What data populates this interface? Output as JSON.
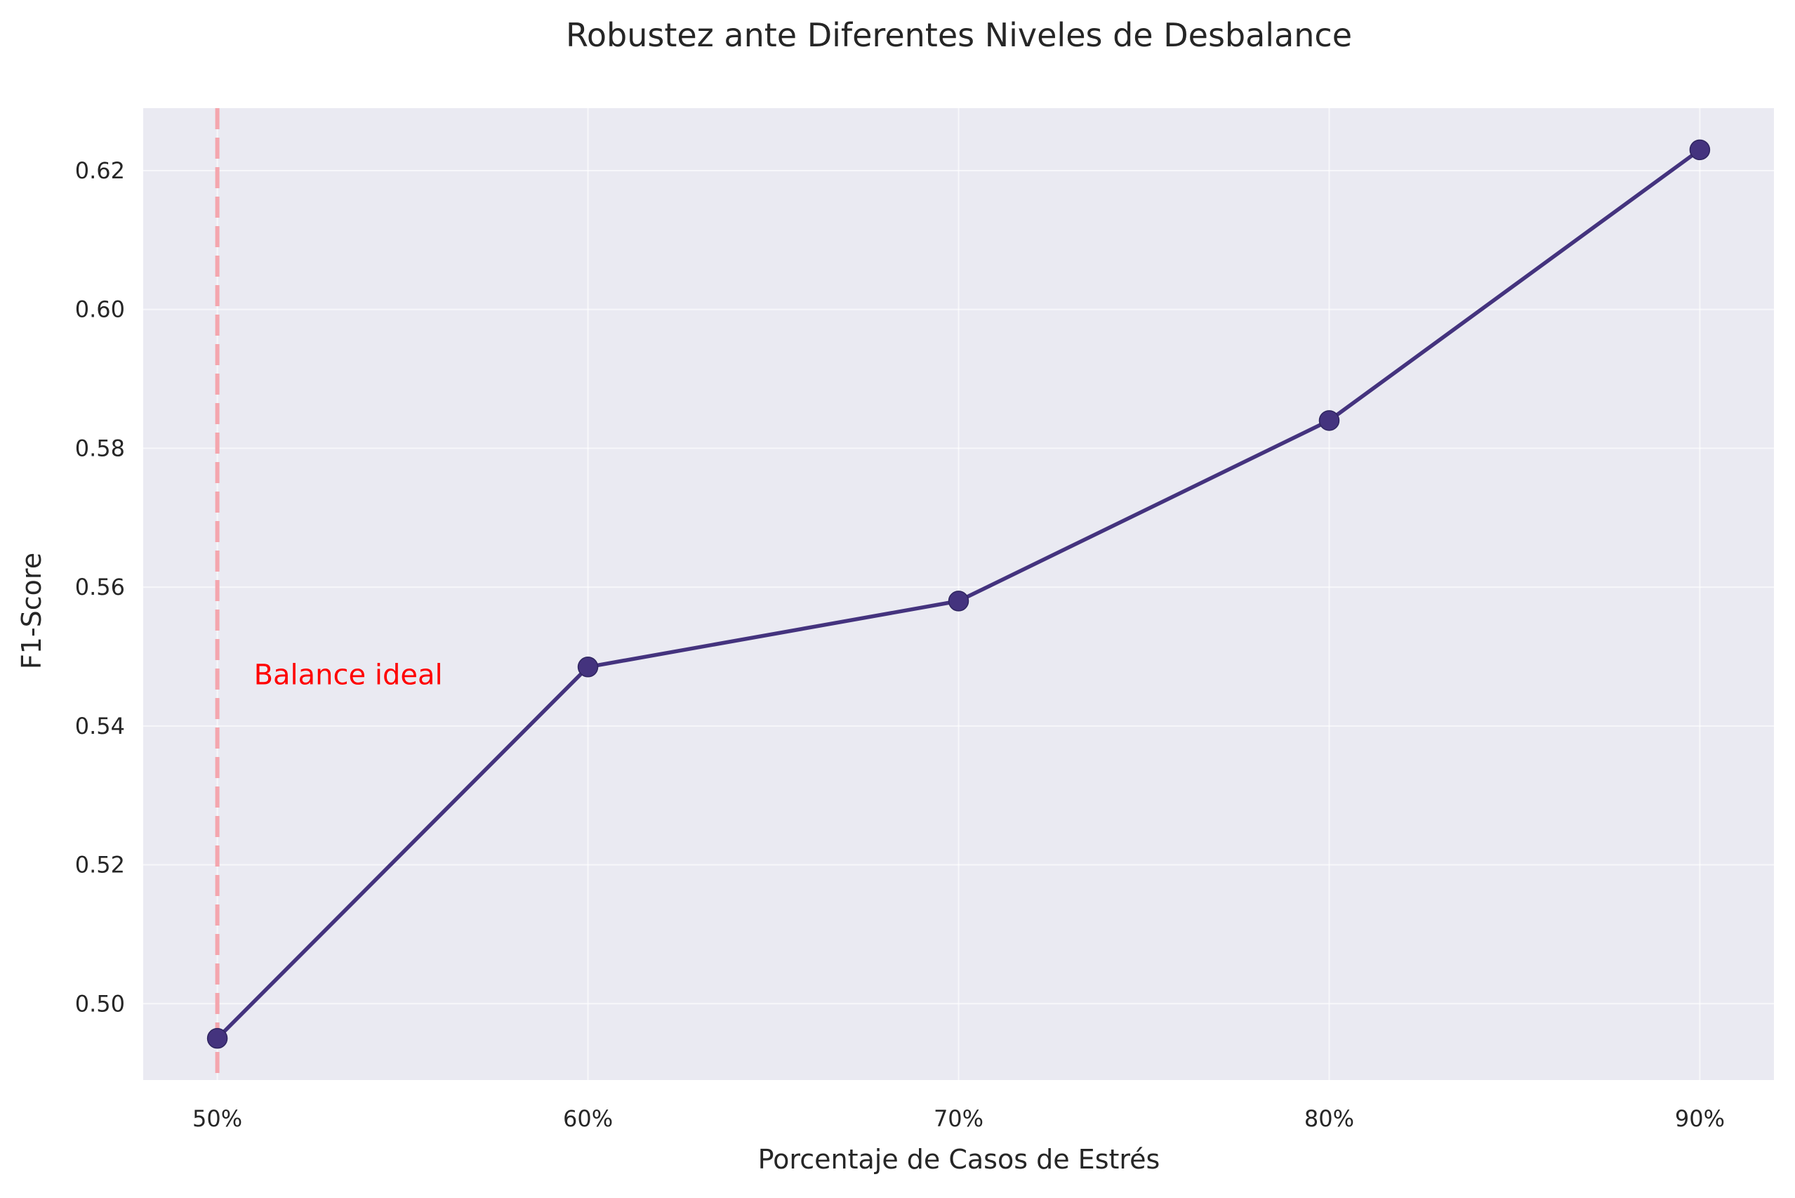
{
  "chart_data": {
    "type": "line",
    "title": "Robustez ante Diferentes Niveles de Desbalance",
    "xlabel": "Porcentaje de Casos de Estrés",
    "ylabel": "F1-Score",
    "categories": [
      "50%",
      "60%",
      "70%",
      "80%",
      "90%"
    ],
    "x": [
      50,
      60,
      70,
      80,
      90
    ],
    "series": [
      {
        "values": [
          0.495,
          0.5485,
          0.558,
          0.584,
          0.623
        ],
        "color": "#44337e"
      }
    ],
    "xlim": [
      48,
      92
    ],
    "ylim": [
      0.489,
      0.629
    ],
    "yticks": [
      0.5,
      0.52,
      0.54,
      0.56,
      0.58,
      0.6,
      0.62
    ],
    "ytick_labels": [
      "0.50",
      "0.52",
      "0.54",
      "0.56",
      "0.58",
      "0.60",
      "0.62"
    ],
    "grid": true,
    "background": "#eaeaf2",
    "reference_line": {
      "x": 50,
      "label": "Balance ideal",
      "label_y": 0.546,
      "line_color": "#f4a6ae",
      "label_color": "#ff0000"
    }
  }
}
